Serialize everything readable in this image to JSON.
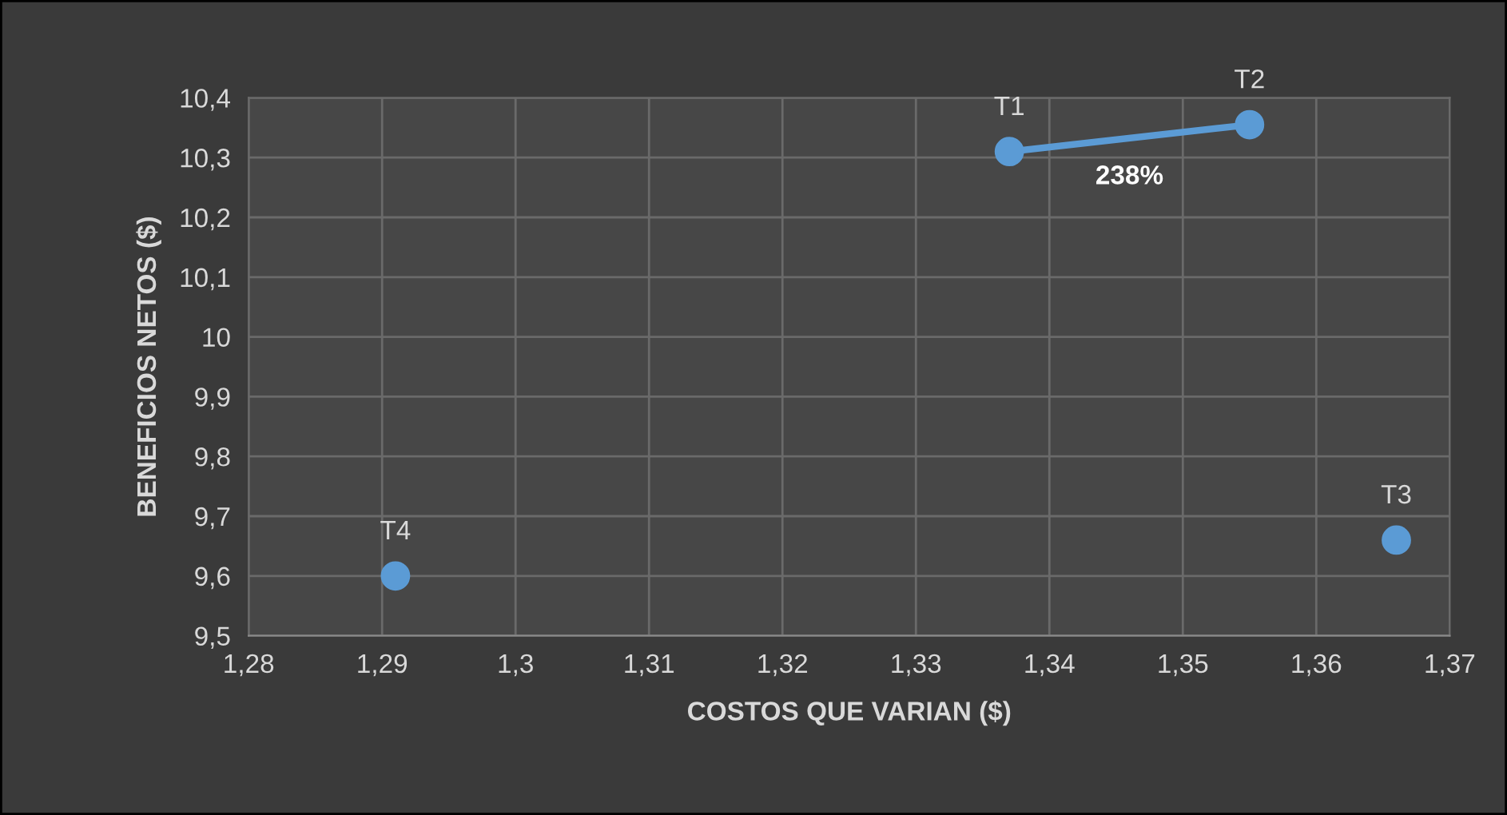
{
  "chart_data": {
    "type": "scatter",
    "xlabel": "COSTOS QUE VARIAN ($)",
    "ylabel": "BENEFICIOS NETOS ($)",
    "series": [
      {
        "color": "#5b9bd5",
        "marker": "circle",
        "x": [
          1.337,
          1.355,
          1.366,
          1.291
        ],
        "values": [
          10.31,
          10.355,
          9.66,
          9.6
        ],
        "value_labels": [
          "T1",
          "T2",
          "T3",
          "T4"
        ]
      },
      {
        "type": "line",
        "marker": "none",
        "color": "#5b9bd5",
        "x": [
          1.337,
          1.355
        ],
        "values": [
          10.31,
          10.355
        ]
      }
    ],
    "annotations": [
      {
        "text": "238%",
        "x": 1.346,
        "y": 10.3325
      }
    ],
    "xlim": [
      1.28,
      1.37
    ],
    "ylim": [
      9.5,
      10.4
    ],
    "xticks": [
      {
        "value": 1.28,
        "label": "1,28"
      },
      {
        "value": 1.29,
        "label": "1,29"
      },
      {
        "value": 1.3,
        "label": "1,3"
      },
      {
        "value": 1.31,
        "label": "1,31"
      },
      {
        "value": 1.32,
        "label": "1,32"
      },
      {
        "value": 1.33,
        "label": "1,33"
      },
      {
        "value": 1.34,
        "label": "1,34"
      },
      {
        "value": 1.35,
        "label": "1,35"
      },
      {
        "value": 1.36,
        "label": "1,36"
      },
      {
        "value": 1.37,
        "label": "1,37"
      }
    ],
    "yticks": [
      {
        "value": 9.5,
        "label": "9,5"
      },
      {
        "value": 9.6,
        "label": "9,6"
      },
      {
        "value": 9.7,
        "label": "9,7"
      },
      {
        "value": 9.8,
        "label": "9,8"
      },
      {
        "value": 9.9,
        "label": "9,9"
      },
      {
        "value": 10,
        "label": "10"
      },
      {
        "value": 10.1,
        "label": "10,1"
      },
      {
        "value": 10.2,
        "label": "10,2"
      },
      {
        "value": 10.3,
        "label": "10,3"
      },
      {
        "value": 10.4,
        "label": "10,4"
      }
    ],
    "grid": true,
    "legend": false
  }
}
